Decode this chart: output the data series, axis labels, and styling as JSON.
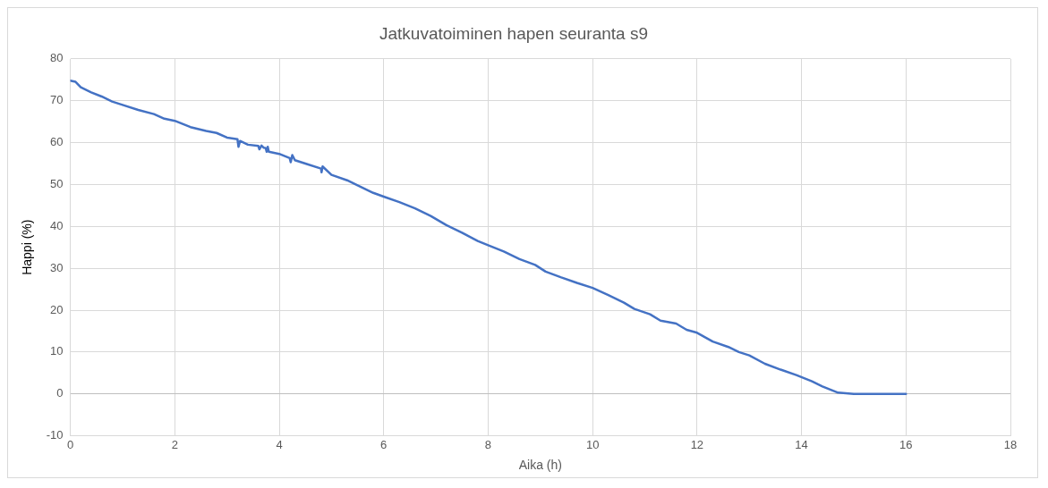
{
  "chart_data": {
    "type": "line",
    "title": "Jatkuvatoiminen hapen seuranta s9",
    "xlabel": "Aika (h)",
    "ylabel": "Happi (%)",
    "x": [
      0,
      0.1,
      0.2,
      0.4,
      0.6,
      0.8,
      1.0,
      1.3,
      1.6,
      1.8,
      2.0,
      2.3,
      2.6,
      2.8,
      3.0,
      3.2,
      3.22,
      3.25,
      3.4,
      3.6,
      3.62,
      3.66,
      3.7,
      3.74,
      3.76,
      3.78,
      3.8,
      4.0,
      4.2,
      4.22,
      4.25,
      4.3,
      4.5,
      4.8,
      4.81,
      4.83,
      5.0,
      5.3,
      5.5,
      5.8,
      6.0,
      6.3,
      6.6,
      6.9,
      7.2,
      7.5,
      7.8,
      8.0,
      8.3,
      8.6,
      8.9,
      9.1,
      9.4,
      9.7,
      10.0,
      10.3,
      10.6,
      10.8,
      11.1,
      11.3,
      11.6,
      11.8,
      12.0,
      12.3,
      12.6,
      12.8,
      13.0,
      13.3,
      13.6,
      13.9,
      14.2,
      14.4,
      14.7,
      15.0,
      16.0
    ],
    "series": [
      {
        "color": "#4472c4",
        "values": [
          74.8,
          74.5,
          73.2,
          72,
          71,
          69.8,
          69,
          67.8,
          66.8,
          65.7,
          65.2,
          63.7,
          62.8,
          62.3,
          61.2,
          60.8,
          59,
          60.4,
          59.5,
          59.2,
          58.4,
          59.3,
          58.8,
          58.7,
          57.8,
          59,
          57.8,
          57.3,
          56.3,
          55.3,
          57,
          55.8,
          55,
          53.8,
          52.9,
          54.3,
          52.3,
          51,
          49.8,
          48,
          47.1,
          45.8,
          44.3,
          42.5,
          40.3,
          38.5,
          36.5,
          35.5,
          34,
          32.2,
          30.8,
          29.2,
          27.8,
          26.5,
          25.3,
          23.6,
          21.8,
          20.3,
          19,
          17.5,
          16.8,
          15.3,
          14.6,
          12.5,
          11.2,
          10,
          9.2,
          7.2,
          5.8,
          4.5,
          3,
          1.8,
          0.3,
          0,
          0
        ]
      }
    ],
    "xlim": [
      0,
      18
    ],
    "xticks": [
      0,
      2,
      4,
      6,
      8,
      10,
      12,
      14,
      16,
      18
    ],
    "ylim": [
      -10,
      80
    ],
    "yticks": [
      -10,
      0,
      10,
      20,
      30,
      40,
      50,
      60,
      70,
      80
    ],
    "grid": true,
    "legend": false,
    "marker": "none",
    "line_style": "solid"
  }
}
